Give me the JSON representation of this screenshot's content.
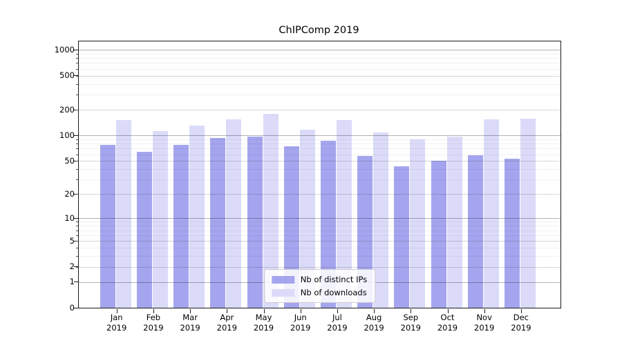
{
  "chart_data": {
    "type": "bar",
    "title": "ChIPComp 2019",
    "year_label": "2019",
    "months": [
      "Jan",
      "Feb",
      "Mar",
      "Apr",
      "May",
      "Jun",
      "Jul",
      "Aug",
      "Sep",
      "Oct",
      "Nov",
      "Dec"
    ],
    "series": [
      {
        "name": "Nb of distinct IPs",
        "color": "#a5a5ef",
        "values": [
          78,
          64,
          77,
          94,
          96,
          75,
          87,
          57,
          43,
          50,
          58,
          53
        ]
      },
      {
        "name": "Nb of downloads",
        "color": "#dbdbf9",
        "values": [
          150,
          113,
          130,
          155,
          178,
          117,
          152,
          109,
          90,
          97,
          155,
          156
        ]
      }
    ],
    "yscale": "log1p",
    "ylim": [
      0,
      1250
    ],
    "yticks": [
      0,
      1,
      2,
      5,
      10,
      20,
      50,
      100,
      200,
      500,
      1000
    ],
    "grid": true,
    "legend_position": "lower center",
    "xlabel": "",
    "ylabel": "",
    "axis_color": "#1a1a1a",
    "background_color": "#ffffff"
  }
}
